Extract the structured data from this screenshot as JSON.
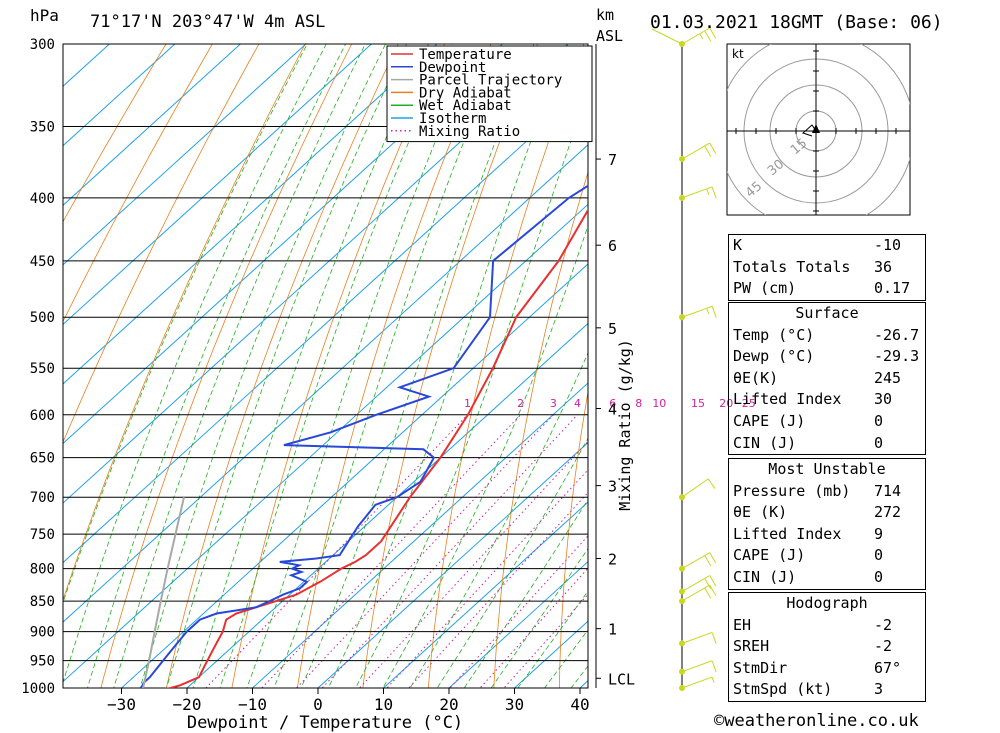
{
  "header": {
    "pressure_unit": "hPa",
    "location": "71°17'N  203°47'W  4m  ASL",
    "height_unit": "km",
    "height_unit_sub": "ASL",
    "datetime": "01.03.2021  18GMT  (Base: 06)"
  },
  "footer": {
    "credit": "©weatheronline.co.uk"
  },
  "chart_data": {
    "type": "line",
    "title": "",
    "xlabel": "Dewpoint / Temperature (°C)",
    "ylabel": "hPa",
    "right_label": "Mixing Ratio (g/kg)",
    "xlim": [
      -40,
      40
    ],
    "ylim": [
      1000,
      300
    ],
    "x_ticks": [
      -30,
      -20,
      -10,
      0,
      10,
      20,
      30,
      40
    ],
    "pressure_ticks": [
      300,
      350,
      400,
      450,
      500,
      550,
      600,
      650,
      700,
      750,
      800,
      850,
      900,
      950,
      1000
    ],
    "height_ticks": [
      {
        "label": "7",
        "p": 372
      },
      {
        "label": "6",
        "p": 437
      },
      {
        "label": "5",
        "p": 510
      },
      {
        "label": "4",
        "p": 593
      },
      {
        "label": "3",
        "p": 685
      },
      {
        "label": "2",
        "p": 785
      },
      {
        "label": "1",
        "p": 895
      },
      {
        "label": "LCL",
        "p": 982
      }
    ],
    "mixing_ratio_labels": [
      "1",
      "2",
      "3",
      "4",
      "6",
      "8",
      "10",
      "15",
      "20",
      "25"
    ],
    "legend": {
      "position": "top-right",
      "entries": [
        {
          "name": "Temperature",
          "color": "#e83030",
          "style": "solid"
        },
        {
          "name": "Dewpoint",
          "color": "#2848d8",
          "style": "solid"
        },
        {
          "name": "Parcel Trajectory",
          "color": "#a8a8a8",
          "style": "solid"
        },
        {
          "name": "Dry Adiabat",
          "color": "#e88020",
          "style": "solid"
        },
        {
          "name": "Wet Adiabat",
          "color": "#20b020",
          "style": "solid"
        },
        {
          "name": "Isotherm",
          "color": "#20a0e8",
          "style": "solid"
        },
        {
          "name": "Mixing Ratio",
          "color": "#d020a0",
          "style": "dotted"
        }
      ]
    },
    "series": [
      {
        "name": "Temperature",
        "points": [
          [
            1005,
            -24.5
          ],
          [
            1000,
            -22.5
          ],
          [
            995,
            -21.5
          ],
          [
            980,
            -20
          ],
          [
            960,
            -21
          ],
          [
            940,
            -22
          ],
          [
            920,
            -23
          ],
          [
            900,
            -24
          ],
          [
            880,
            -25.5
          ],
          [
            870,
            -25
          ],
          [
            860,
            -23
          ],
          [
            850,
            -21
          ],
          [
            840,
            -19
          ],
          [
            820,
            -17.5
          ],
          [
            810,
            -17
          ],
          [
            800,
            -16.5
          ],
          [
            790,
            -15.5
          ],
          [
            780,
            -15
          ],
          [
            760,
            -15
          ],
          [
            700,
            -18
          ],
          [
            650,
            -20
          ],
          [
            600,
            -23
          ],
          [
            550,
            -27
          ],
          [
            500,
            -32
          ],
          [
            450,
            -35
          ],
          [
            400,
            -40
          ],
          [
            350,
            -44
          ],
          [
            330,
            -46
          ],
          [
            300,
            -47
          ]
        ]
      },
      {
        "name": "Dewpoint",
        "points": [
          [
            1005,
            -26
          ],
          [
            1000,
            -27
          ],
          [
            990,
            -27.5
          ],
          [
            980,
            -27.5
          ],
          [
            960,
            -28
          ],
          [
            940,
            -28.5
          ],
          [
            920,
            -29
          ],
          [
            900,
            -29.5
          ],
          [
            880,
            -29.5
          ],
          [
            870,
            -28
          ],
          [
            860,
            -23
          ],
          [
            850,
            -22
          ],
          [
            840,
            -21
          ],
          [
            830,
            -19.5
          ],
          [
            820,
            -19.5
          ],
          [
            810,
            -23
          ],
          [
            805,
            -22
          ],
          [
            800,
            -24
          ],
          [
            795,
            -23.5
          ],
          [
            790,
            -27
          ],
          [
            785,
            -22
          ],
          [
            780,
            -19
          ],
          [
            740,
            -21
          ],
          [
            710,
            -22
          ],
          [
            700,
            -20
          ],
          [
            680,
            -19
          ],
          [
            650,
            -21
          ],
          [
            640,
            -24
          ],
          [
            635,
            -46
          ],
          [
            620,
            -41
          ],
          [
            600,
            -37
          ],
          [
            580,
            -32
          ],
          [
            570,
            -38
          ],
          [
            550,
            -33
          ],
          [
            500,
            -36
          ],
          [
            450,
            -45
          ],
          [
            400,
            -44
          ],
          [
            380,
            -42
          ],
          [
            350,
            -47
          ],
          [
            330,
            -50
          ],
          [
            300,
            -52
          ]
        ]
      },
      {
        "name": "Parcel Trajectory",
        "points": [
          [
            1000,
            -26.7
          ],
          [
            950,
            -30.4
          ],
          [
            900,
            -34.4
          ],
          [
            850,
            -38.6
          ],
          [
            800,
            -43
          ],
          [
            750,
            -47.6
          ],
          [
            700,
            -52.5
          ]
        ]
      }
    ],
    "wind_barbs": [
      {
        "p": 300,
        "dir": 240,
        "kt": 25
      },
      {
        "p": 372,
        "dir": 240,
        "kt": 20
      },
      {
        "p": 400,
        "dir": 250,
        "kt": 15
      },
      {
        "p": 500,
        "dir": 250,
        "kt": 15
      },
      {
        "p": 700,
        "dir": 235,
        "kt": 10
      },
      {
        "p": 800,
        "dir": 240,
        "kt": 20
      },
      {
        "p": 835,
        "dir": 240,
        "kt": 20
      },
      {
        "p": 850,
        "dir": 240,
        "kt": 20
      },
      {
        "p": 920,
        "dir": 250,
        "kt": 10
      },
      {
        "p": 970,
        "dir": 250,
        "kt": 10
      },
      {
        "p": 1000,
        "dir": 250,
        "kt": 5
      }
    ],
    "hodograph": {
      "unit": "kt",
      "ring_labels": [
        "15",
        "30",
        "45"
      ]
    }
  },
  "indices": {
    "top": [
      {
        "label": "K",
        "value": "-10"
      },
      {
        "label": "Totals Totals",
        "value": "36"
      },
      {
        "label": "PW (cm)",
        "value": "0.17"
      }
    ],
    "surface": {
      "title": "Surface",
      "rows": [
        {
          "label": "Temp (°C)",
          "value": "-26.7"
        },
        {
          "label": "Dewp (°C)",
          "value": "-29.3"
        },
        {
          "label": "θE(K)",
          "value": "245"
        },
        {
          "label": "Lifted Index",
          "value": "30"
        },
        {
          "label": "CAPE (J)",
          "value": "0"
        },
        {
          "label": "CIN (J)",
          "value": "0"
        }
      ]
    },
    "most_unstable": {
      "title": "Most Unstable",
      "rows": [
        {
          "label": "Pressure (mb)",
          "value": "714"
        },
        {
          "label": "θE (K)",
          "value": "272"
        },
        {
          "label": "Lifted Index",
          "value": "9"
        },
        {
          "label": "CAPE (J)",
          "value": "0"
        },
        {
          "label": "CIN (J)",
          "value": "0"
        }
      ]
    },
    "hodograph": {
      "title": "Hodograph",
      "rows": [
        {
          "label": "EH",
          "value": "-2"
        },
        {
          "label": "SREH",
          "value": "-2"
        },
        {
          "label": "StmDir",
          "value": "67°"
        },
        {
          "label": "StmSpd (kt)",
          "value": "3"
        }
      ]
    }
  }
}
